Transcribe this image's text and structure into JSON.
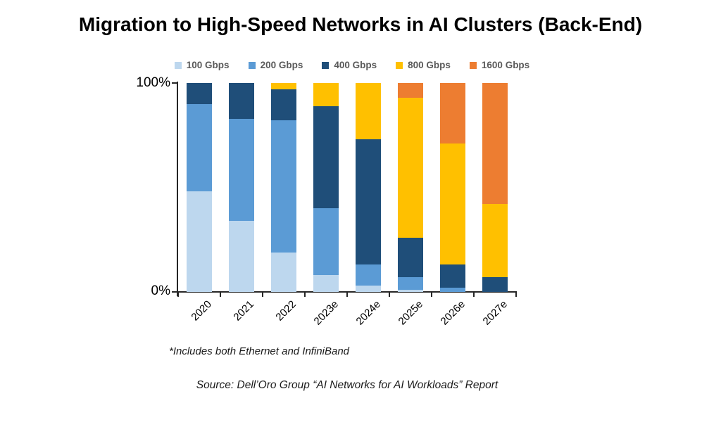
{
  "title": "Migration to High-Speed Networks in AI Clusters (Back-End)",
  "y_axis": {
    "top_label": "100%",
    "bottom_label": "0%"
  },
  "footnote": "*Includes both Ethernet and InfiniBand",
  "source": "Source: Dell’Oro Group “AI Networks for AI Workloads” Report",
  "chart_data": {
    "type": "bar",
    "stacked": true,
    "unit": "percent",
    "title": "Migration to High-Speed Networks in AI Clusters (Back-End)",
    "categories": [
      "2020",
      "2021",
      "2022",
      "2023e",
      "2024e",
      "2025e",
      "2026e",
      "2027e"
    ],
    "series": [
      {
        "name": "100 Gbps",
        "color": "#BDD7EE",
        "values": [
          48,
          34,
          19,
          8,
          3,
          1,
          0,
          0
        ]
      },
      {
        "name": "200 Gbps",
        "color": "#5B9BD5",
        "values": [
          42,
          49,
          63,
          32,
          10,
          6,
          2,
          0
        ]
      },
      {
        "name": "400 Gbps",
        "color": "#1F4E79",
        "values": [
          10,
          17,
          15,
          49,
          60,
          19,
          11,
          7
        ]
      },
      {
        "name": "800 Gbps",
        "color": "#FFC000",
        "values": [
          0,
          0,
          3,
          11,
          27,
          67,
          58,
          35
        ]
      },
      {
        "name": "1600 Gbps",
        "color": "#ED7D31",
        "values": [
          0,
          0,
          0,
          0,
          0,
          7,
          29,
          58
        ]
      }
    ],
    "ylim": [
      0,
      100
    ],
    "ytick_labels": [
      "0%",
      "100%"
    ],
    "legend_position": "top",
    "grid": false,
    "axis_color": "#262626"
  }
}
